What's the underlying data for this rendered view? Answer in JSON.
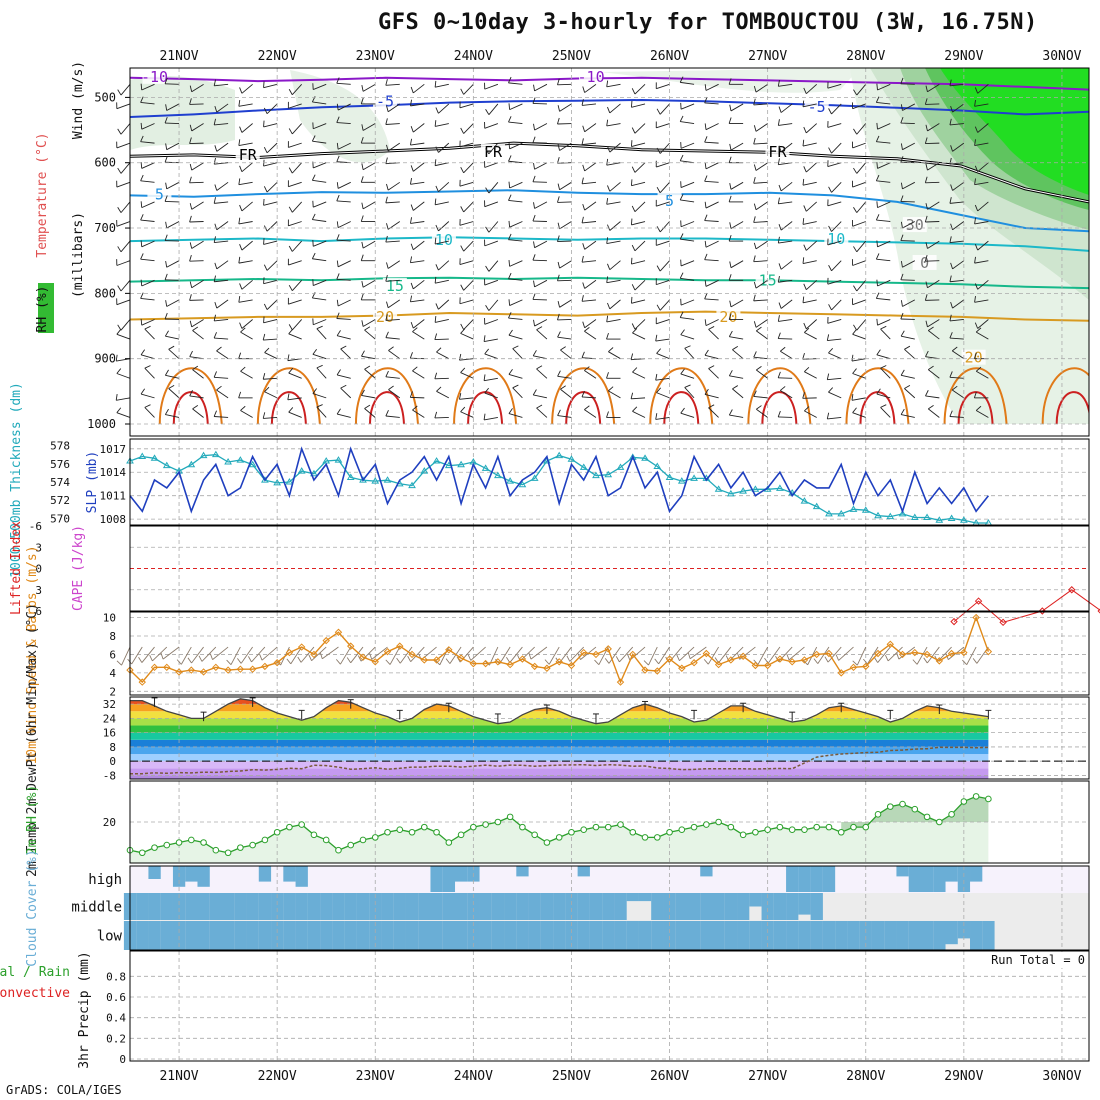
{
  "title": "GFS 0~10day 3-hourly for TOMBOUCTOU (3W, 16.75N)",
  "footer": "GrADS: COLA/IGES",
  "colors": {
    "grid": "#aaaaaa",
    "ink": "#000000",
    "rh": "#2ca02c",
    "cape": "#cc44cc",
    "li": "#dd2222",
    "slp": "#1f3fbf",
    "thk": "#22aabb",
    "wind": "#e08a1a",
    "cloud": "#6aaed6"
  },
  "chart_data": [
    {
      "type": "contour",
      "panel": "upper_air",
      "title": "Upper-air temperature (°C), RH (%) and wind",
      "x_labels": [
        "21NOV",
        "22NOV",
        "23NOV",
        "24NOV",
        "25NOV",
        "26NOV",
        "27NOV",
        "28NOV",
        "29NOV",
        "30NOV"
      ],
      "ylabel_parts": [
        "Wind (m/s)",
        "Temperature (°C)",
        "(millibars)",
        "RH (%)"
      ],
      "y_ticks": [
        500,
        600,
        700,
        800,
        900,
        1000
      ],
      "ylim": [
        1000,
        455
      ],
      "isotherms": [
        {
          "label": "-10",
          "level": [
            470,
            472,
            475,
            473,
            470,
            472,
            474,
            471,
            470,
            472,
            474,
            476,
            478,
            480,
            484,
            488
          ]
        },
        {
          "label": "-5",
          "level": [
            530,
            526,
            520,
            515,
            512,
            508,
            506,
            505,
            504,
            506,
            509,
            512,
            516,
            520,
            526,
            522
          ]
        },
        {
          "label": "FR",
          "level": [
            590,
            588,
            592,
            586,
            582,
            578,
            570,
            574,
            580,
            582,
            584,
            590,
            594,
            605,
            640,
            660
          ]
        },
        {
          "label": "5",
          "level": [
            650,
            652,
            648,
            645,
            646,
            644,
            642,
            646,
            648,
            648,
            646,
            650,
            660,
            680,
            700,
            705
          ]
        },
        {
          "label": "10",
          "level": [
            720,
            718,
            716,
            720,
            716,
            714,
            716,
            718,
            716,
            716,
            718,
            720,
            722,
            724,
            728,
            735
          ]
        },
        {
          "label": "15",
          "level": [
            782,
            780,
            778,
            780,
            777,
            776,
            778,
            776,
            778,
            780,
            780,
            782,
            784,
            786,
            790,
            792
          ]
        },
        {
          "label": "20",
          "level": [
            840,
            838,
            836,
            836,
            834,
            830,
            832,
            834,
            830,
            828,
            830,
            832,
            834,
            836,
            840,
            842
          ]
        }
      ],
      "contour_labels": [
        {
          "text": "-10",
          "day": 0.25,
          "level": 470
        },
        {
          "text": "-10",
          "day": 4.7,
          "level": 470
        },
        {
          "text": "-5",
          "day": 2.6,
          "level": 508
        },
        {
          "text": "-5",
          "day": 7.0,
          "level": 516
        },
        {
          "text": "FR",
          "day": 1.2,
          "level": 590
        },
        {
          "text": "FR",
          "day": 3.7,
          "level": 585
        },
        {
          "text": "FR",
          "day": 6.6,
          "level": 585
        },
        {
          "text": "5",
          "day": 0.3,
          "level": 650
        },
        {
          "text": "5",
          "day": 5.5,
          "level": 660
        },
        {
          "text": "10",
          "day": 3.2,
          "level": 720
        },
        {
          "text": "10",
          "day": 7.2,
          "level": 718
        },
        {
          "text": "15",
          "day": 2.7,
          "level": 790
        },
        {
          "text": "15",
          "day": 6.5,
          "level": 782
        },
        {
          "text": "20",
          "day": 2.6,
          "level": 838
        },
        {
          "text": "20",
          "day": 6.1,
          "level": 838
        },
        {
          "text": "30",
          "day": 8.0,
          "level": 697
        },
        {
          "text": "0",
          "day": 8.1,
          "level": 755
        },
        {
          "text": "20",
          "day": 8.6,
          "level": 900
        }
      ]
    },
    {
      "type": "line",
      "panel": "slp_thickness",
      "ylabel_left": "1000-500mb Thickness (dm)",
      "ylabel_right": "SLP (mb)",
      "left_ticks": [
        570,
        572,
        574,
        576,
        578
      ],
      "left_lim": [
        569.5,
        578.5
      ],
      "right_ticks": [
        1008,
        1011,
        1014,
        1017
      ],
      "right_lim": [
        1007.5,
        1018
      ],
      "series": [
        {
          "name": "1000-500mb Thickness",
          "unit": "dm",
          "values": [
            576.3,
            576.8,
            576.6,
            575.8,
            575.2,
            575.9,
            576.9,
            577.0,
            576.2,
            576.4,
            575.9,
            574.2,
            573.9,
            574.0,
            575.2,
            574.9,
            576.3,
            576.4,
            574.5,
            574.2,
            574.1,
            574.2,
            573.8,
            573.6,
            575.2,
            576.3,
            575.8,
            575.9,
            576.2,
            575.5,
            574.7,
            574.1,
            573.7,
            574.4,
            576.3,
            576.9,
            576.5,
            575.6,
            574.7,
            574.8,
            575.6,
            576.7,
            576.6,
            575.7,
            574.5,
            574.1,
            574.4,
            574.4,
            573.2,
            572.7,
            573.0,
            573.2,
            573.2,
            573.3,
            572.8,
            571.9,
            571.3,
            570.5,
            570.5,
            571.0,
            570.9,
            570.3,
            570.2,
            570.5,
            570.1,
            570.1,
            569.8,
            570.0,
            569.8,
            569.5,
            569.5
          ]
        },
        {
          "name": "SLP",
          "unit": "mb",
          "values": [
            1011,
            1009,
            1013,
            1012,
            1014,
            1009,
            1013,
            1015,
            1011,
            1012,
            1016,
            1013,
            1015,
            1011,
            1017,
            1013,
            1015,
            1011,
            1017,
            1013,
            1015,
            1010,
            1013,
            1014,
            1016,
            1013,
            1016,
            1010,
            1015,
            1012,
            1016,
            1011,
            1013,
            1014,
            1016,
            1010,
            1015,
            1013,
            1016,
            1011,
            1012,
            1016,
            1012,
            1014,
            1009,
            1011,
            1016,
            1013,
            1015,
            1012,
            1014,
            1011,
            1012,
            1014,
            1011,
            1013,
            1012,
            1012,
            1015,
            1010,
            1014,
            1011,
            1013,
            1009,
            1014,
            1010,
            1012,
            1010,
            1012,
            1009,
            1011
          ]
        }
      ]
    },
    {
      "type": "line",
      "panel": "stability",
      "ylabel_left": "Lifted Index",
      "ylabel_right": "CAPE (J/kg)",
      "left_ticks": [
        "-6",
        "-3",
        "0",
        "3",
        "6"
      ],
      "left_lim": [
        -6,
        6
      ],
      "series": [
        {
          "name": "Lifted Index",
          "values": [
            [
              8.4,
              7.5
            ],
            [
              8.65,
              4.6
            ],
            [
              8.9,
              7.6
            ],
            [
              9.3,
              6.0
            ],
            [
              9.6,
              3.0
            ],
            [
              9.9,
              6.0
            ],
            [
              10.2,
              6.0
            ],
            [
              10.4,
              5.2
            ],
            [
              10.6,
              7.0
            ]
          ]
        }
      ]
    },
    {
      "type": "line",
      "panel": "wind10m",
      "ylabel": "10m Wind Speed & Barbs (m/s)",
      "y_ticks": [
        2,
        4,
        6,
        8,
        10
      ],
      "ylim": [
        1.6,
        10.6
      ],
      "series": [
        {
          "name": "10m wind speed",
          "unit": "m/s",
          "values": [
            4.3,
            3.0,
            4.6,
            4.6,
            4.1,
            4.3,
            4.1,
            4.6,
            4.3,
            4.4,
            4.4,
            4.7,
            5.1,
            6.2,
            6.8,
            6.0,
            7.5,
            8.4,
            6.9,
            5.7,
            5.2,
            6.3,
            6.9,
            6.0,
            5.4,
            5.4,
            6.5,
            5.6,
            5.0,
            5.0,
            5.2,
            4.9,
            5.5,
            4.7,
            4.5,
            5.2,
            4.8,
            6.2,
            6.0,
            6.6,
            3.0,
            6.0,
            4.3,
            4.2,
            5.5,
            4.5,
            5.1,
            6.1,
            4.9,
            5.4,
            5.8,
            4.8,
            4.8,
            5.5,
            5.2,
            5.4,
            6.0,
            6.1,
            4.0,
            4.6,
            4.7,
            6.1,
            7.1,
            6.0,
            6.2,
            6.0,
            5.3,
            6.1,
            6.2,
            10.0,
            6.3
          ]
        }
      ]
    },
    {
      "type": "area",
      "panel": "temperature",
      "ylabel": "2m Temp 2m DewPt (6hr Min/Max) (°C)",
      "y_ticks": [
        -8,
        0,
        8,
        16,
        24,
        32
      ],
      "ylim": [
        -10,
        36
      ],
      "series": [
        {
          "name": "2m Temp",
          "unit": "°C",
          "values": [
            34,
            34,
            31,
            28,
            26,
            24,
            24,
            28,
            32,
            35,
            34,
            30,
            27,
            25,
            23,
            25,
            30,
            34,
            33,
            30,
            27,
            25,
            22,
            24,
            29,
            32,
            31,
            28,
            25,
            23,
            21,
            22,
            26,
            29,
            30,
            28,
            25,
            23,
            21,
            22,
            26,
            30,
            32,
            30,
            27,
            25,
            22,
            23,
            27,
            31,
            31,
            28,
            26,
            24,
            22,
            23,
            26,
            30,
            31,
            29,
            27,
            25,
            22,
            24,
            28,
            31,
            30,
            28,
            27,
            26,
            25
          ]
        },
        {
          "name": "2m DewPt",
          "unit": "°C",
          "values": [
            -7,
            -7,
            -6.5,
            -6.8,
            -6.4,
            -6.6,
            -6.2,
            -6.3,
            -5.8,
            -5.5,
            -4.8,
            -5,
            -4.6,
            -4,
            -4.2,
            -2.3,
            -2.5,
            -3.4,
            -4.5,
            -4.2,
            -3.7,
            -4.5,
            -4,
            -3.3,
            -3.3,
            -2.8,
            -2.8,
            -3.3,
            -2.8,
            -2.2,
            -2.8,
            -2.2,
            -2.3,
            -2.8,
            -2.5,
            -2.2,
            -2.1,
            -2,
            -2.4,
            -2,
            -2.2,
            -2.8,
            -2.7,
            -3.8,
            -4.1,
            -4.7,
            -4.6,
            -4.2,
            -4.2,
            -4.2,
            -4.3,
            -4.4,
            -4.2,
            -4.1,
            -4.2,
            -1,
            2.3,
            3.3,
            4,
            4.4,
            4.8,
            5,
            6,
            6.2,
            6.8,
            7,
            7.8,
            7.7,
            7.8,
            7.5,
            7.8
          ]
        }
      ]
    },
    {
      "type": "area",
      "panel": "rh2m",
      "ylabel": "2m RH (%)",
      "y_ticks": [
        20
      ],
      "ylim": [
        4,
        36
      ],
      "series": [
        {
          "name": "2m RH",
          "unit": "%",
          "values": [
            9,
            8,
            10,
            11,
            12,
            13,
            12,
            9,
            8,
            10,
            11,
            13,
            16,
            18,
            19,
            15,
            13,
            9,
            11,
            13,
            14,
            16,
            17,
            16,
            18,
            16,
            12,
            15,
            18,
            19,
            20,
            22,
            18,
            15,
            12,
            14,
            16,
            17,
            18,
            18,
            19,
            16,
            14,
            14,
            16,
            17,
            18,
            19,
            20,
            18,
            15,
            16,
            17,
            18,
            17,
            17,
            18,
            18,
            16,
            18,
            18,
            23,
            26,
            27,
            25,
            22,
            20,
            23,
            28,
            30,
            29
          ]
        }
      ]
    },
    {
      "type": "bar",
      "panel": "cloud_cover",
      "ylabel": "Cloud Cover (%)",
      "row_labels": [
        "high",
        "middle",
        "low"
      ],
      "series": [
        {
          "name": "high",
          "unit": "%",
          "values": [
            0,
            0,
            50,
            0,
            80,
            60,
            80,
            0,
            0,
            0,
            0,
            60,
            0,
            60,
            80,
            0,
            0,
            0,
            0,
            0,
            0,
            0,
            0,
            0,
            0,
            100,
            100,
            60,
            60,
            0,
            0,
            0,
            40,
            0,
            0,
            0,
            0,
            40,
            0,
            0,
            0,
            0,
            0,
            0,
            0,
            0,
            0,
            40,
            0,
            0,
            0,
            0,
            0,
            0,
            100,
            100,
            100,
            100,
            0,
            0,
            0,
            0,
            0,
            40,
            100,
            100,
            100,
            60,
            100,
            60,
            0
          ]
        },
        {
          "name": "middle",
          "unit": "%",
          "values": [
            100,
            100,
            100,
            100,
            100,
            100,
            100,
            100,
            100,
            100,
            100,
            100,
            100,
            100,
            100,
            100,
            100,
            100,
            100,
            100,
            100,
            100,
            100,
            100,
            100,
            100,
            100,
            100,
            100,
            100,
            100,
            100,
            100,
            100,
            100,
            100,
            100,
            100,
            100,
            100,
            100,
            30,
            30,
            100,
            100,
            100,
            100,
            100,
            100,
            100,
            100,
            50,
            100,
            100,
            100,
            80,
            100,
            0,
            0,
            0,
            0,
            0,
            0,
            0,
            0,
            0,
            0,
            0,
            0,
            0,
            0
          ]
        },
        {
          "name": "low",
          "unit": "%",
          "values": [
            100,
            100,
            100,
            100,
            100,
            100,
            100,
            100,
            100,
            100,
            100,
            100,
            100,
            100,
            100,
            100,
            100,
            100,
            100,
            100,
            100,
            100,
            100,
            100,
            100,
            100,
            100,
            100,
            100,
            100,
            100,
            100,
            100,
            100,
            100,
            100,
            100,
            100,
            100,
            100,
            100,
            100,
            100,
            100,
            100,
            100,
            100,
            100,
            100,
            100,
            100,
            100,
            100,
            100,
            100,
            100,
            100,
            100,
            100,
            100,
            100,
            100,
            100,
            100,
            100,
            100,
            100,
            80,
            60,
            100,
            100
          ]
        }
      ]
    },
    {
      "type": "line",
      "panel": "precip",
      "ylabel_parts": [
        "Total / Rain",
        "Convective",
        "3hr Precip (mm)"
      ],
      "y_ticks": [
        "0",
        "0.2",
        "0.4",
        "0.6",
        "0.8"
      ],
      "ylim": [
        0,
        0.9
      ],
      "annotation": "Run Total = 0",
      "series": [
        {
          "name": "Total / Rain",
          "unit": "mm",
          "values": []
        },
        {
          "name": "Convective",
          "unit": "mm",
          "values": []
        }
      ]
    }
  ]
}
